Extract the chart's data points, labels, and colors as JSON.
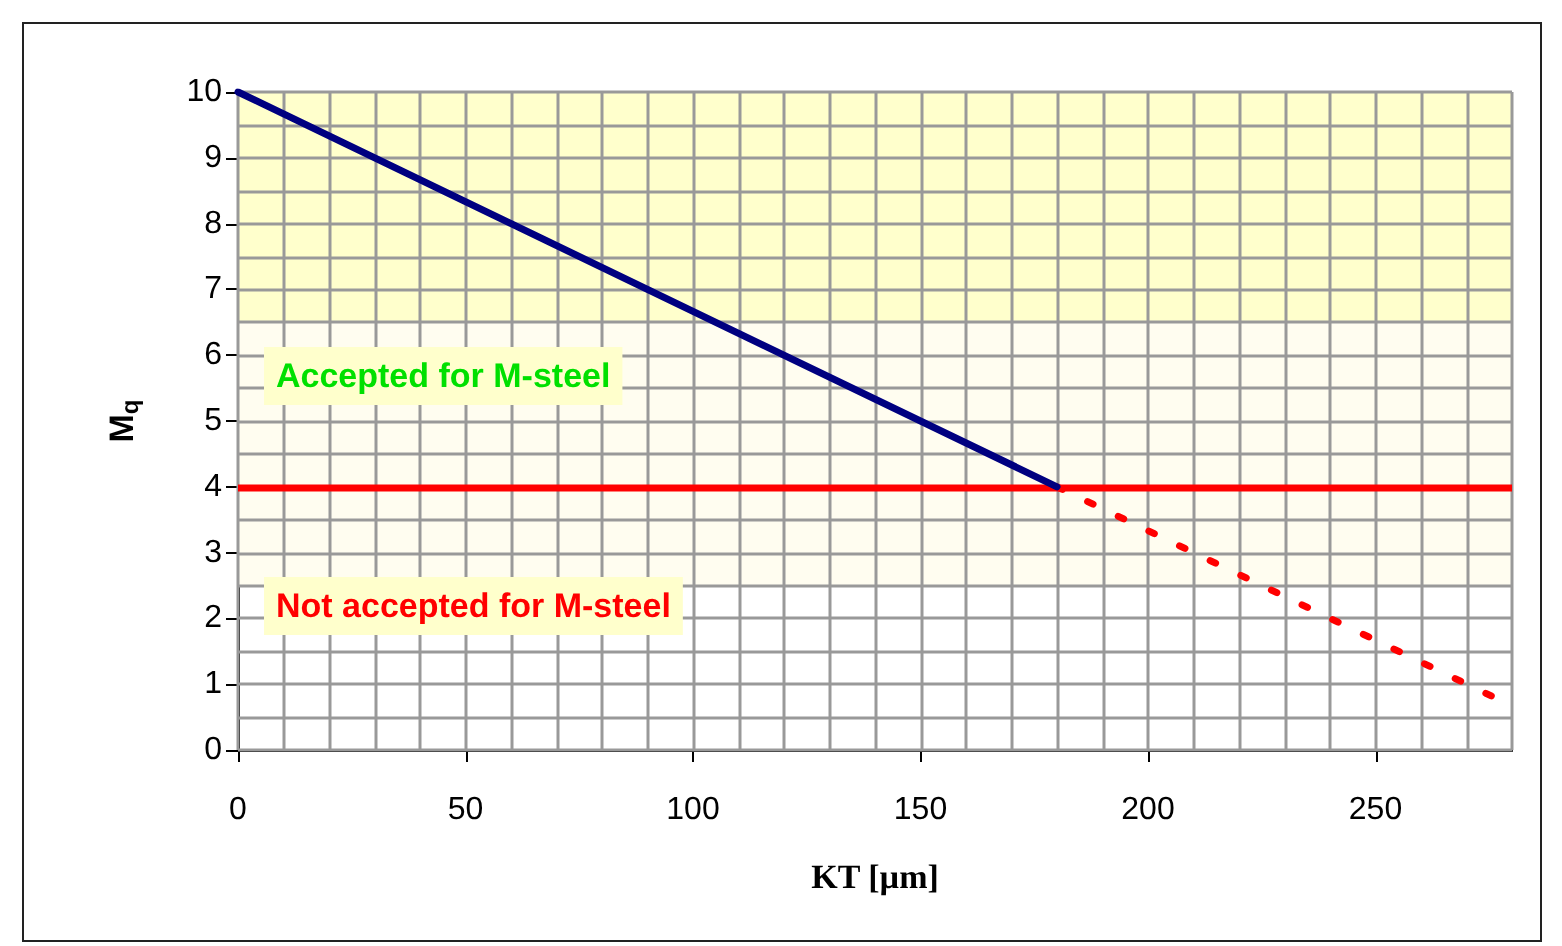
{
  "chart_data": {
    "type": "line",
    "xlabel": "KT [µm]",
    "ylabel": "M$_{q}$",
    "xlim": [
      0,
      280
    ],
    "xticks": [
      0,
      50,
      100,
      150,
      200,
      250
    ],
    "ylim": [
      0,
      10
    ],
    "yticks": [
      0,
      1,
      2,
      3,
      4,
      5,
      6,
      7,
      8,
      9,
      10
    ],
    "series": [
      {
        "color": "#000080",
        "x": [
          0,
          180
        ],
        "values": [
          10,
          4
        ],
        "line_style": "solid"
      },
      {
        "color": "#ff0000",
        "x": [
          180,
          280
        ],
        "values": [
          4,
          0.67
        ],
        "line_style": "dotted"
      }
    ],
    "ref_lines": [
      {
        "axis": "y",
        "value": 4,
        "color": "#ff0000"
      }
    ],
    "bands": [
      {
        "axis": "y",
        "from": 6.5,
        "to": 10,
        "color": "#ffffcc"
      },
      {
        "axis": "y",
        "from": 2.5,
        "to": 6.5,
        "color": "#fffdf0"
      }
    ],
    "annotations": [
      "Accepted for M-steel",
      "Not accepted for M-steel"
    ],
    "grid": true,
    "marker": "none"
  }
}
